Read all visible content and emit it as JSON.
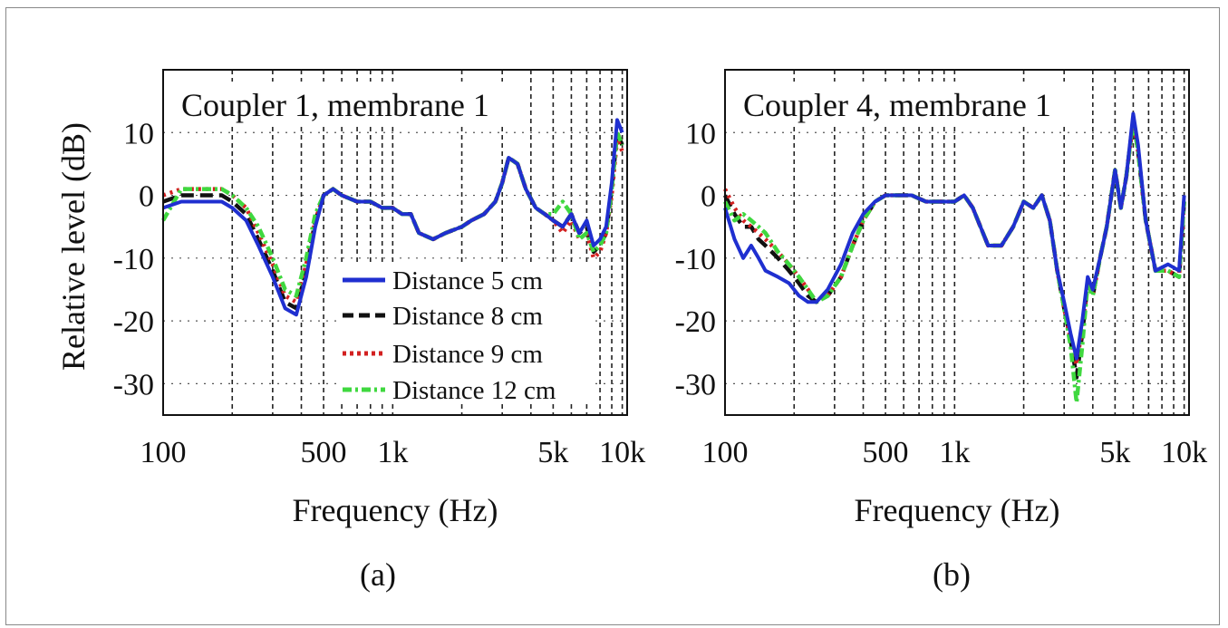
{
  "ylabel": "Relative level (dB)",
  "chart_data": [
    {
      "type": "line",
      "panel_label": "(a)",
      "title": "Coupler 1, membrane 1",
      "xlabel": "Frequency (Hz)",
      "ylabel": "Relative level (dB)",
      "x_scale": "log",
      "xlim": [
        100,
        10500
      ],
      "ylim": [
        -35,
        20
      ],
      "x_tick_labels": [
        {
          "value": 100,
          "label": "100"
        },
        {
          "value": 500,
          "label": "500"
        },
        {
          "value": 1000,
          "label": "1k"
        },
        {
          "value": 5000,
          "label": "5k"
        },
        {
          "value": 10000,
          "label": "10k"
        }
      ],
      "y_tick_labels": [
        {
          "value": 10,
          "label": "10"
        },
        {
          "value": 0,
          "label": "0"
        },
        {
          "value": -10,
          "label": "-10"
        },
        {
          "value": -20,
          "label": "-20"
        },
        {
          "value": -30,
          "label": "-30"
        }
      ],
      "grid": true,
      "legend_position": "center",
      "series": [
        {
          "name": "Distance 5 cm",
          "color": "#1f2fd0",
          "style": "solid",
          "x": [
            100,
            120,
            140,
            160,
            180,
            200,
            230,
            260,
            300,
            340,
            380,
            420,
            460,
            500,
            550,
            600,
            700,
            800,
            900,
            1000,
            1100,
            1200,
            1300,
            1500,
            1700,
            2000,
            2200,
            2500,
            2800,
            3000,
            3200,
            3500,
            3800,
            4200,
            4600,
            5000,
            5500,
            6000,
            6500,
            7000,
            7500,
            8000,
            8500,
            9000,
            9500,
            10000
          ],
          "y": [
            -2,
            -1,
            -1,
            -1,
            -1,
            -2,
            -4,
            -8,
            -13,
            -18,
            -19,
            -13,
            -5,
            0,
            1,
            0,
            -1,
            -1,
            -2,
            -2,
            -3,
            -3,
            -6,
            -7,
            -6,
            -5,
            -4,
            -3,
            -1,
            2,
            6,
            5,
            1,
            -2,
            -3,
            -4,
            -5,
            -3,
            -6,
            -4,
            -8,
            -7,
            -5,
            2,
            12,
            10
          ]
        },
        {
          "name": "Distance 8 cm",
          "color": "#111111",
          "style": "dashed",
          "x": [
            100,
            120,
            140,
            160,
            180,
            200,
            230,
            260,
            300,
            340,
            380,
            420,
            460,
            500,
            550,
            600,
            700,
            800,
            900,
            1000,
            1100,
            1200,
            1300,
            1500,
            1700,
            2000,
            2200,
            2500,
            2800,
            3000,
            3200,
            3500,
            3800,
            4200,
            4600,
            5000,
            5500,
            6000,
            6500,
            7000,
            7500,
            8000,
            8500,
            9000,
            9500,
            10000
          ],
          "y": [
            -1,
            0,
            0,
            0,
            0,
            -1,
            -3,
            -7,
            -12,
            -17,
            -18,
            -12,
            -4,
            0,
            1,
            0,
            -1,
            -1,
            -2,
            -2,
            -3,
            -3,
            -6,
            -7,
            -6,
            -5,
            -4,
            -3,
            -1,
            2,
            6,
            5,
            1,
            -2,
            -3,
            -4,
            -5,
            -3,
            -6,
            -5,
            -9,
            -8,
            -6,
            1,
            10,
            8
          ]
        },
        {
          "name": "Distance 9 cm",
          "color": "#d22020",
          "style": "dotted",
          "x": [
            100,
            120,
            140,
            160,
            180,
            200,
            230,
            260,
            300,
            340,
            380,
            420,
            460,
            500,
            550,
            600,
            700,
            800,
            900,
            1000,
            1100,
            1200,
            1300,
            1500,
            1700,
            2000,
            2200,
            2500,
            2800,
            3000,
            3200,
            3500,
            3800,
            4200,
            4600,
            5000,
            5500,
            6000,
            6500,
            7000,
            7500,
            8000,
            8500,
            9000,
            9500,
            10000
          ],
          "y": [
            0,
            1,
            1,
            1,
            1,
            0,
            -2,
            -6,
            -11,
            -16,
            -17,
            -11,
            -4,
            0,
            1,
            0,
            -1,
            -1,
            -2,
            -2,
            -3,
            -3,
            -6,
            -7,
            -6,
            -5,
            -4,
            -3,
            -1,
            2,
            6,
            5,
            1,
            -2,
            -3,
            -4,
            -6,
            -4,
            -7,
            -6,
            -10,
            -9,
            -6,
            0,
            9,
            7
          ]
        },
        {
          "name": "Distance 12 cm",
          "color": "#3fd83f",
          "style": "dashdot",
          "x": [
            100,
            120,
            140,
            160,
            180,
            200,
            230,
            260,
            300,
            340,
            380,
            420,
            460,
            500,
            550,
            600,
            700,
            800,
            900,
            1000,
            1100,
            1200,
            1300,
            1500,
            1700,
            2000,
            2200,
            2500,
            2800,
            3000,
            3200,
            3500,
            3800,
            4200,
            4600,
            5000,
            5500,
            6000,
            6500,
            7000,
            7500,
            8000,
            8500,
            9000,
            9500,
            10000
          ],
          "y": [
            -4,
            1,
            1,
            1,
            1,
            0,
            -2,
            -5,
            -10,
            -15,
            -16,
            -10,
            -3,
            0,
            1,
            0,
            -1,
            -1,
            -2,
            -2,
            -3,
            -3,
            -6,
            -7,
            -6,
            -5,
            -4,
            -3,
            -1,
            2,
            6,
            5,
            1,
            -2,
            -3,
            -3,
            -1,
            -3,
            -7,
            -6,
            -9,
            -8,
            -6,
            1,
            10,
            8
          ]
        }
      ]
    },
    {
      "type": "line",
      "panel_label": "(b)",
      "title": "Coupler 4, membrane 1",
      "xlabel": "Frequency (Hz)",
      "ylabel": "",
      "x_scale": "log",
      "xlim": [
        100,
        10500
      ],
      "ylim": [
        -35,
        20
      ],
      "x_tick_labels": [
        {
          "value": 100,
          "label": "100"
        },
        {
          "value": 500,
          "label": "500"
        },
        {
          "value": 1000,
          "label": "1k"
        },
        {
          "value": 5000,
          "label": "5k"
        },
        {
          "value": 10000,
          "label": "10k"
        }
      ],
      "y_tick_labels": [
        {
          "value": 10,
          "label": "10"
        },
        {
          "value": 0,
          "label": "0"
        },
        {
          "value": -10,
          "label": "-10"
        },
        {
          "value": -20,
          "label": "-20"
        },
        {
          "value": -30,
          "label": "-30"
        }
      ],
      "grid": true,
      "series": [
        {
          "name": "Distance 5 cm",
          "color": "#1f2fd0",
          "style": "solid",
          "x": [
            100,
            110,
            120,
            130,
            140,
            150,
            170,
            190,
            210,
            230,
            250,
            280,
            320,
            360,
            400,
            450,
            500,
            560,
            650,
            750,
            850,
            1000,
            1100,
            1200,
            1400,
            1600,
            1800,
            2000,
            2200,
            2400,
            2600,
            2800,
            3000,
            3200,
            3400,
            3600,
            3800,
            4000,
            4300,
            4600,
            5000,
            5300,
            5600,
            6000,
            6300,
            6800,
            7500,
            8500,
            9500,
            10000
          ],
          "y": [
            -2,
            -7,
            -10,
            -8,
            -10,
            -12,
            -13,
            -14,
            -16,
            -17,
            -17,
            -15,
            -11,
            -6,
            -3,
            -1,
            0,
            0,
            0,
            -1,
            -1,
            -1,
            0,
            -2,
            -8,
            -8,
            -5,
            -1,
            -2,
            0,
            -4,
            -12,
            -17,
            -22,
            -26,
            -20,
            -13,
            -15,
            -10,
            -5,
            4,
            -2,
            3,
            13,
            8,
            -4,
            -12,
            -11,
            -12,
            0
          ]
        },
        {
          "name": "Distance 8 cm",
          "color": "#111111",
          "style": "dashed",
          "x": [
            100,
            110,
            120,
            130,
            140,
            150,
            170,
            190,
            210,
            230,
            250,
            280,
            320,
            360,
            400,
            450,
            500,
            560,
            650,
            750,
            850,
            1000,
            1100,
            1200,
            1400,
            1600,
            1800,
            2000,
            2200,
            2400,
            2600,
            2800,
            3000,
            3200,
            3400,
            3600,
            3800,
            4000,
            4300,
            4600,
            5000,
            5300,
            5600,
            6000,
            6300,
            6800,
            7500,
            8500,
            9500,
            10000
          ],
          "y": [
            0,
            -3,
            -5,
            -5,
            -7,
            -8,
            -10,
            -12,
            -14,
            -16,
            -17,
            -16,
            -13,
            -8,
            -4,
            -1,
            0,
            0,
            0,
            -1,
            -1,
            -1,
            0,
            -2,
            -8,
            -8,
            -5,
            -1,
            -2,
            0,
            -4,
            -12,
            -18,
            -23,
            -29,
            -22,
            -14,
            -16,
            -10,
            -5,
            4,
            -2,
            3,
            12,
            7,
            -4,
            -12,
            -12,
            -13,
            -1
          ]
        },
        {
          "name": "Distance 9 cm",
          "color": "#d22020",
          "style": "dotted",
          "x": [
            100,
            110,
            120,
            130,
            140,
            150,
            170,
            190,
            210,
            230,
            250,
            280,
            320,
            360,
            400,
            450,
            500,
            560,
            650,
            750,
            850,
            1000,
            1100,
            1200,
            1400,
            1600,
            1800,
            2000,
            2200,
            2400,
            2600,
            2800,
            3000,
            3200,
            3400,
            3600,
            3800,
            4000,
            4300,
            4600,
            5000,
            5300,
            5600,
            6000,
            6300,
            6800,
            7500,
            8500,
            9500,
            10000
          ],
          "y": [
            1,
            -2,
            -4,
            -5,
            -6,
            -7,
            -9,
            -11,
            -13,
            -15,
            -17,
            -16,
            -13,
            -8,
            -4,
            -1,
            0,
            0,
            0,
            -1,
            -1,
            -1,
            0,
            -2,
            -8,
            -8,
            -5,
            -1,
            -2,
            0,
            -4,
            -12,
            -18,
            -23,
            -27,
            -21,
            -14,
            -16,
            -10,
            -5,
            4,
            -2,
            3,
            12,
            7,
            -4,
            -12,
            -12,
            -13,
            -1
          ]
        },
        {
          "name": "Distance 12 cm",
          "color": "#3fd83f",
          "style": "dashdot",
          "x": [
            100,
            110,
            120,
            130,
            140,
            150,
            170,
            190,
            210,
            230,
            250,
            280,
            320,
            360,
            400,
            450,
            500,
            560,
            650,
            750,
            850,
            1000,
            1100,
            1200,
            1400,
            1600,
            1800,
            2000,
            2200,
            2400,
            2600,
            2800,
            3000,
            3200,
            3400,
            3600,
            3800,
            4000,
            4300,
            4600,
            5000,
            5300,
            5600,
            6000,
            6300,
            6800,
            7500,
            8500,
            9500,
            10000
          ],
          "y": [
            -1,
            -4,
            -3,
            -4,
            -5,
            -6,
            -9,
            -11,
            -13,
            -15,
            -17,
            -16,
            -13,
            -8,
            -4,
            -1,
            0,
            0,
            0,
            -1,
            -1,
            -1,
            0,
            -2,
            -8,
            -8,
            -5,
            -1,
            -2,
            0,
            -4,
            -12,
            -18,
            -24,
            -33,
            -24,
            -14,
            -16,
            -10,
            -5,
            4,
            -2,
            3,
            12,
            7,
            -4,
            -12,
            -12,
            -13,
            -1
          ]
        }
      ]
    }
  ]
}
